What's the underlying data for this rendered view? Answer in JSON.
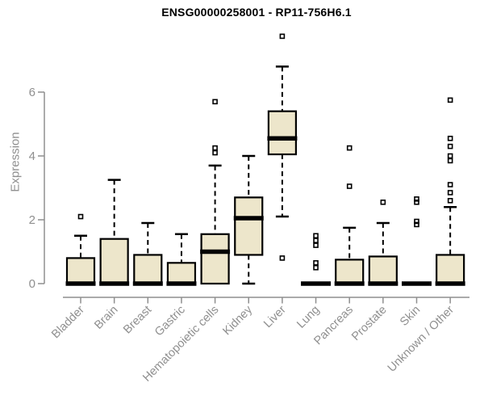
{
  "chart_data": {
    "type": "boxplot",
    "title": "ENSG00000258001 - RP11-756H6.1",
    "ylabel": "Expression",
    "xlabel": "",
    "yticks": [
      0,
      2,
      4,
      6
    ],
    "ylim": [
      0,
      7.9
    ],
    "grid": false,
    "legend": false,
    "categories": [
      "Bladder",
      "Brain",
      "Breast",
      "Gastric",
      "Hematopoietic cells",
      "Kidney",
      "Liver",
      "Lung",
      "Pancreas",
      "Prostate",
      "Skin",
      "Unknown / Other"
    ],
    "series": [
      {
        "category": "Bladder",
        "q1": 0,
        "median": 0,
        "q3": 0.8,
        "whisker_low": 0,
        "whisker_high": 1.5,
        "outliers": [
          2.1
        ]
      },
      {
        "category": "Brain",
        "q1": 0,
        "median": 0,
        "q3": 1.4,
        "whisker_low": 0,
        "whisker_high": 3.25,
        "outliers": []
      },
      {
        "category": "Breast",
        "q1": 0,
        "median": 0,
        "q3": 0.9,
        "whisker_low": 0,
        "whisker_high": 1.9,
        "outliers": []
      },
      {
        "category": "Gastric",
        "q1": 0,
        "median": 0,
        "q3": 0.65,
        "whisker_low": 0,
        "whisker_high": 1.55,
        "outliers": []
      },
      {
        "category": "Hematopoietic cells",
        "q1": 0,
        "median": 1.0,
        "q3": 1.55,
        "whisker_low": 0,
        "whisker_high": 3.7,
        "outliers": [
          4.1,
          4.25,
          5.7
        ]
      },
      {
        "category": "Kidney",
        "q1": 0.9,
        "median": 2.05,
        "q3": 2.7,
        "whisker_low": 0,
        "whisker_high": 4.0,
        "outliers": []
      },
      {
        "category": "Liver",
        "q1": 4.05,
        "median": 4.55,
        "q3": 5.4,
        "whisker_low": 2.1,
        "whisker_high": 6.8,
        "outliers": [
          0.8,
          7.75
        ]
      },
      {
        "category": "Lung",
        "q1": 0,
        "median": 0,
        "q3": 0,
        "whisker_low": 0,
        "whisker_high": 0,
        "outliers": [
          0.5,
          0.65,
          1.2,
          1.35,
          1.5
        ]
      },
      {
        "category": "Pancreas",
        "q1": 0,
        "median": 0,
        "q3": 0.75,
        "whisker_low": 0,
        "whisker_high": 1.75,
        "outliers": [
          3.05,
          4.25
        ]
      },
      {
        "category": "Prostate",
        "q1": 0,
        "median": 0,
        "q3": 0.85,
        "whisker_low": 0,
        "whisker_high": 1.9,
        "outliers": [
          2.55
        ]
      },
      {
        "category": "Skin",
        "q1": 0,
        "median": 0,
        "q3": 0,
        "whisker_low": 0,
        "whisker_high": 0,
        "outliers": [
          1.85,
          1.95,
          2.55,
          2.65
        ]
      },
      {
        "category": "Unknown / Other",
        "q1": 0,
        "median": 0,
        "q3": 0.9,
        "whisker_low": 0,
        "whisker_high": 2.4,
        "outliers": [
          2.6,
          2.85,
          3.1,
          3.85,
          4.0,
          4.3,
          4.55,
          5.75
        ]
      }
    ],
    "colors": {
      "box_fill": "#EDE6CB",
      "box_border": "#000000",
      "median": "#000000",
      "whisker": "#000000",
      "outlier": "#000000",
      "axis": "#8f8f8f",
      "tick_text": "#8f8f8f",
      "title_text": "#000000",
      "background": "#ffffff"
    }
  }
}
